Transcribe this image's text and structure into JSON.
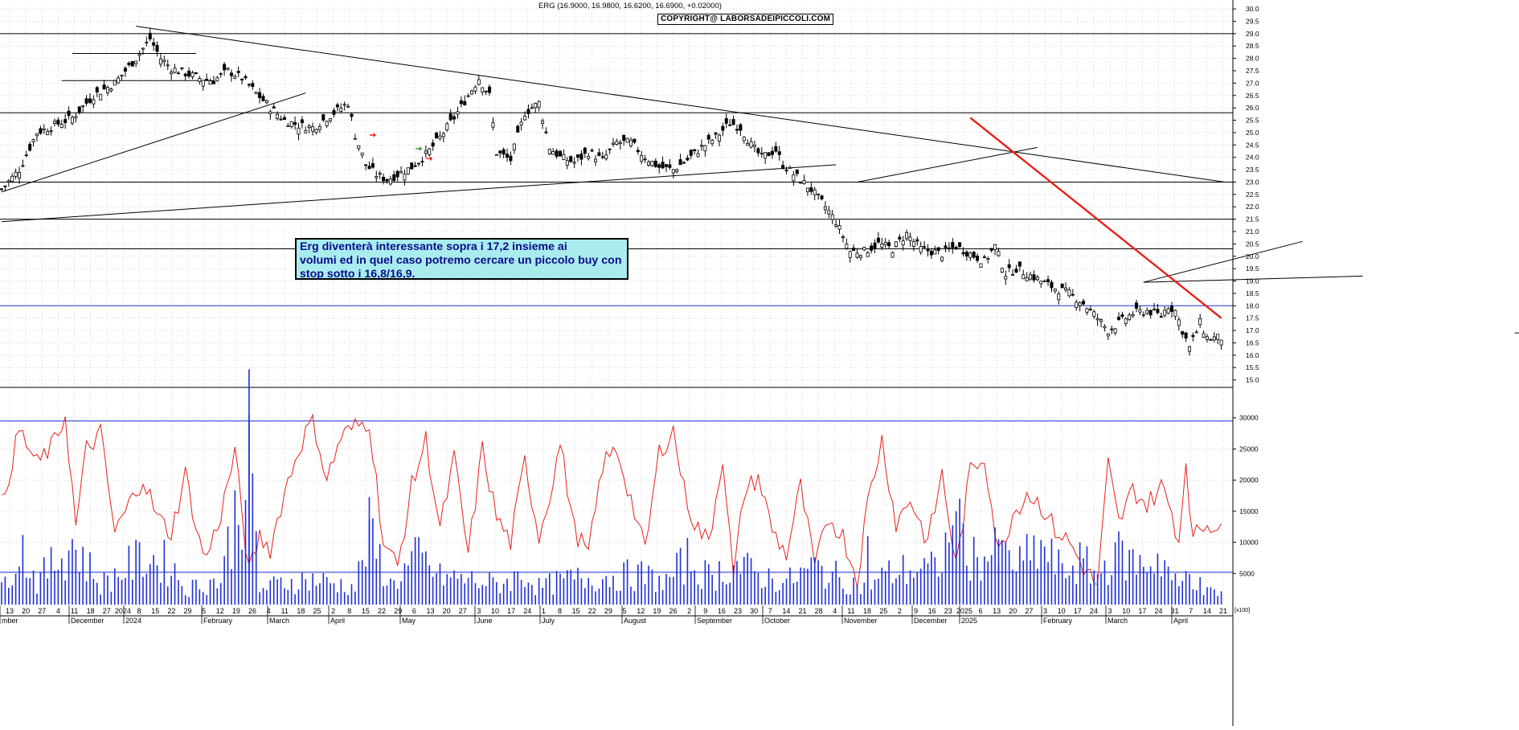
{
  "header": "ERG (16.9000, 16.9800, 16.6200, 16.6900, +0.02000)",
  "copyright": "COPYRIGHT@ LABORSADEIPICCOLI.COM",
  "note": {
    "line1": "Erg diventerà interessante sopra i 17,2 insieme ai",
    "line2": "volumi ed in quel caso potremo cercare un piccolo buy con",
    "line3": "stop sotto i 16,8/16,9."
  },
  "volume_scale_label": "[x100]",
  "colors": {
    "price_bars": "#000000",
    "oscillator": "#e8201a",
    "volume": "#1f2fd8",
    "red_trendline": "#e8201a",
    "horizontal_blue": "#1f2fd8",
    "note_bg": "#a9ecee",
    "note_text": "#0b0b8a"
  },
  "chart_data": [
    {
      "type": "candlestick",
      "title": "ERG (16.9000, 16.9800, 16.6200, 16.6900, +0.02000)",
      "ylim": [
        14.5,
        30.0
      ],
      "y_ticks": [
        "30.0",
        "29.5",
        "29.0",
        "28.5",
        "28.0",
        "27.5",
        "27.0",
        "26.5",
        "26.0",
        "25.5",
        "25.0",
        "24.5",
        "24.0",
        "23.5",
        "23.0",
        "22.5",
        "22.0",
        "21.5",
        "21.0",
        "20.5",
        "20.0",
        "19.5",
        "19.0",
        "18.5",
        "18.0",
        "17.5",
        "17.0",
        "16.5",
        "16.0",
        "15.5",
        "15.0"
      ],
      "x_day_ticks": [
        "13",
        "20",
        "27",
        "4",
        "11",
        "18",
        "27",
        "2024",
        "8",
        "15",
        "22",
        "29",
        "5",
        "12",
        "19",
        "26",
        "4",
        "11",
        "18",
        "25",
        "2",
        "8",
        "15",
        "22",
        "29",
        "6",
        "13",
        "20",
        "27",
        "3",
        "10",
        "17",
        "24",
        "1",
        "8",
        "15",
        "22",
        "29",
        "5",
        "12",
        "19",
        "26",
        "2",
        "9",
        "16",
        "23",
        "30",
        "7",
        "14",
        "21",
        "28",
        "4",
        "11",
        "18",
        "25",
        "2",
        "9",
        "16",
        "23",
        "2025",
        "6",
        "13",
        "20",
        "27",
        "3",
        "10",
        "17",
        "24",
        "3",
        "10",
        "17",
        "24",
        "31",
        "7",
        "14",
        "21"
      ],
      "x_month_labels": [
        "mber",
        "December",
        "2024",
        "February",
        "March",
        "April",
        "May",
        "June",
        "July",
        "August",
        "September",
        "October",
        "November",
        "December",
        "2025",
        "February",
        "March",
        "April"
      ],
      "close_path": [
        [
          0,
          22.7
        ],
        [
          5,
          23.5
        ],
        [
          10,
          25.0
        ],
        [
          15,
          25.3
        ],
        [
          20,
          25.6
        ],
        [
          26,
          26.5
        ],
        [
          32,
          27.0
        ],
        [
          38,
          28.0
        ],
        [
          42,
          28.8
        ],
        [
          45,
          28.0
        ],
        [
          48,
          27.6
        ],
        [
          52,
          27.4
        ],
        [
          56,
          27.2
        ],
        [
          60,
          27.1
        ],
        [
          64,
          27.5
        ],
        [
          68,
          27.2
        ],
        [
          72,
          26.6
        ],
        [
          76,
          26.0
        ],
        [
          80,
          25.5
        ],
        [
          84,
          25.3
        ],
        [
          88,
          25.2
        ],
        [
          92,
          25.6
        ],
        [
          95,
          25.9
        ],
        [
          98,
          26.2
        ],
        [
          100,
          24.9
        ],
        [
          103,
          23.7
        ],
        [
          106,
          23.3
        ],
        [
          109,
          23.1
        ],
        [
          112,
          23.3
        ],
        [
          116,
          23.6
        ],
        [
          120,
          24.1
        ],
        [
          124,
          24.8
        ],
        [
          128,
          25.6
        ],
        [
          132,
          26.5
        ],
        [
          135,
          27.2
        ],
        [
          138,
          26.5
        ],
        [
          140,
          24.2
        ],
        [
          144,
          23.9
        ],
        [
          148,
          25.8
        ],
        [
          152,
          26.2
        ],
        [
          155,
          24.4
        ],
        [
          158,
          24.0
        ],
        [
          162,
          23.8
        ],
        [
          166,
          24.2
        ],
        [
          170,
          23.9
        ],
        [
          174,
          24.6
        ],
        [
          178,
          24.6
        ],
        [
          182,
          24.0
        ],
        [
          186,
          23.6
        ],
        [
          190,
          23.5
        ],
        [
          194,
          23.9
        ],
        [
          198,
          24.4
        ],
        [
          202,
          24.8
        ],
        [
          206,
          25.4
        ],
        [
          209,
          25.2
        ],
        [
          212,
          24.5
        ],
        [
          215,
          24.0
        ],
        [
          219,
          24.3
        ],
        [
          221,
          23.7
        ],
        [
          225,
          23.2
        ],
        [
          229,
          22.7
        ],
        [
          233,
          22.0
        ],
        [
          236,
          21.4
        ],
        [
          240,
          20.2
        ],
        [
          244,
          20.2
        ],
        [
          248,
          20.5
        ],
        [
          252,
          20.3
        ],
        [
          256,
          20.9
        ],
        [
          260,
          20.3
        ],
        [
          263,
          20.2
        ],
        [
          266,
          20.1
        ],
        [
          270,
          20.4
        ],
        [
          274,
          20.1
        ],
        [
          278,
          19.8
        ],
        [
          281,
          20.4
        ],
        [
          284,
          19.3
        ],
        [
          287,
          19.5
        ],
        [
          290,
          19.3
        ],
        [
          294,
          19.0
        ],
        [
          298,
          18.7
        ],
        [
          302,
          18.5
        ],
        [
          306,
          18.1
        ],
        [
          310,
          17.5
        ],
        [
          313,
          17.0
        ],
        [
          316,
          17.3
        ],
        [
          320,
          17.7
        ],
        [
          324,
          17.8
        ],
        [
          328,
          17.6
        ],
        [
          330,
          18.0
        ],
        [
          332,
          17.8
        ],
        [
          334,
          17.0
        ],
        [
          336,
          16.3
        ],
        [
          339,
          17.3
        ],
        [
          341,
          16.7
        ]
      ],
      "support_levels": [
        29.0,
        25.8,
        23.0,
        21.5,
        20.3,
        18.0,
        14.7
      ]
    },
    {
      "type": "line",
      "title": "",
      "ylim": [
        0,
        30500
      ],
      "y_ticks": [
        "30000",
        "25000",
        "20000",
        "15000",
        "10000",
        "5000"
      ],
      "oscillator_path": [
        [
          0,
          16000
        ],
        [
          5,
          28000
        ],
        [
          10,
          22500
        ],
        [
          15,
          26000
        ],
        [
          18,
          30500
        ],
        [
          21,
          12500
        ],
        [
          24,
          25000
        ],
        [
          28,
          27500
        ],
        [
          32,
          11500
        ],
        [
          36,
          16000
        ],
        [
          40,
          20500
        ],
        [
          44,
          14000
        ],
        [
          48,
          11500
        ],
        [
          52,
          21000
        ],
        [
          56,
          10000
        ],
        [
          58,
          7500
        ],
        [
          62,
          14500
        ],
        [
          66,
          24500
        ],
        [
          70,
          5000
        ],
        [
          73,
          11000
        ],
        [
          76,
          9000
        ],
        [
          80,
          18000
        ],
        [
          84,
          25000
        ],
        [
          88,
          30000
        ],
        [
          92,
          20000
        ],
        [
          96,
          27000
        ],
        [
          100,
          28500
        ],
        [
          104,
          29500
        ],
        [
          108,
          10000
        ],
        [
          112,
          6000
        ],
        [
          116,
          19000
        ],
        [
          120,
          26500
        ],
        [
          124,
          12000
        ],
        [
          128,
          23500
        ],
        [
          132,
          8000
        ],
        [
          136,
          25000
        ],
        [
          140,
          14000
        ],
        [
          144,
          10000
        ],
        [
          148,
          23000
        ],
        [
          152,
          11000
        ],
        [
          156,
          20000
        ],
        [
          158,
          26000
        ],
        [
          162,
          12000
        ],
        [
          166,
          8000
        ],
        [
          170,
          22500
        ],
        [
          174,
          25000
        ],
        [
          178,
          17000
        ],
        [
          182,
          8500
        ],
        [
          186,
          24500
        ],
        [
          190,
          28000
        ],
        [
          193,
          18500
        ],
        [
          196,
          13000
        ],
        [
          200,
          10000
        ],
        [
          204,
          24000
        ],
        [
          207,
          4000
        ],
        [
          210,
          18000
        ],
        [
          214,
          20500
        ],
        [
          218,
          12000
        ],
        [
          222,
          8000
        ],
        [
          226,
          19000
        ],
        [
          230,
          6000
        ],
        [
          234,
          14000
        ],
        [
          238,
          11000
        ],
        [
          242,
          4000
        ],
        [
          245,
          16500
        ],
        [
          249,
          26500
        ],
        [
          253,
          13000
        ],
        [
          257,
          17000
        ],
        [
          262,
          10000
        ],
        [
          266,
          21000
        ],
        [
          270,
          6000
        ],
        [
          274,
          21500
        ],
        [
          278,
          24000
        ],
        [
          282,
          8000
        ],
        [
          286,
          14500
        ],
        [
          290,
          18000
        ],
        [
          294,
          16000
        ],
        [
          298,
          12000
        ],
        [
          302,
          10000
        ],
        [
          306,
          6000
        ],
        [
          310,
          3000
        ],
        [
          313,
          22500
        ],
        [
          316,
          13000
        ],
        [
          320,
          18500
        ],
        [
          324,
          16000
        ],
        [
          328,
          19000
        ],
        [
          331,
          15000
        ],
        [
          333,
          10000
        ],
        [
          335,
          23500
        ],
        [
          337,
          10000
        ],
        [
          339,
          12500
        ],
        [
          342,
          13000
        ]
      ]
    },
    {
      "type": "bar",
      "title": "",
      "ylim": [
        0,
        30500
      ],
      "note": "volume histogram, blue bars",
      "volume_path": [
        [
          0,
          3000
        ],
        [
          5,
          12500
        ],
        [
          10,
          4500
        ],
        [
          20,
          12500
        ],
        [
          28,
          4000
        ],
        [
          40,
          9500
        ],
        [
          48,
          8000
        ],
        [
          52,
          3000
        ],
        [
          56,
          4000
        ],
        [
          62,
          5000
        ],
        [
          70,
          30500
        ],
        [
          73,
          3000
        ],
        [
          80,
          4500
        ],
        [
          88,
          5000
        ],
        [
          100,
          3500
        ],
        [
          104,
          14000
        ],
        [
          110,
          4000
        ],
        [
          118,
          9500
        ],
        [
          124,
          5500
        ],
        [
          132,
          5000
        ],
        [
          140,
          4000
        ],
        [
          148,
          6000
        ],
        [
          152,
          3500
        ],
        [
          160,
          5000
        ],
        [
          170,
          5500
        ],
        [
          180,
          6000
        ],
        [
          188,
          4500
        ],
        [
          194,
          9000
        ],
        [
          200,
          5500
        ],
        [
          207,
          8000
        ],
        [
          214,
          6000
        ],
        [
          222,
          4500
        ],
        [
          230,
          7500
        ],
        [
          238,
          5000
        ],
        [
          244,
          3500
        ],
        [
          250,
          6000
        ],
        [
          256,
          7000
        ],
        [
          264,
          7000
        ],
        [
          270,
          15000
        ],
        [
          275,
          9500
        ],
        [
          282,
          10000
        ],
        [
          288,
          8000
        ],
        [
          294,
          11500
        ],
        [
          300,
          6500
        ],
        [
          305,
          8500
        ],
        [
          310,
          6000
        ],
        [
          315,
          10000
        ],
        [
          322,
          8000
        ],
        [
          328,
          9500
        ],
        [
          333,
          3000
        ],
        [
          336,
          7500
        ],
        [
          340,
          2500
        ]
      ],
      "reference_levels": [
        29500,
        5200
      ]
    }
  ]
}
